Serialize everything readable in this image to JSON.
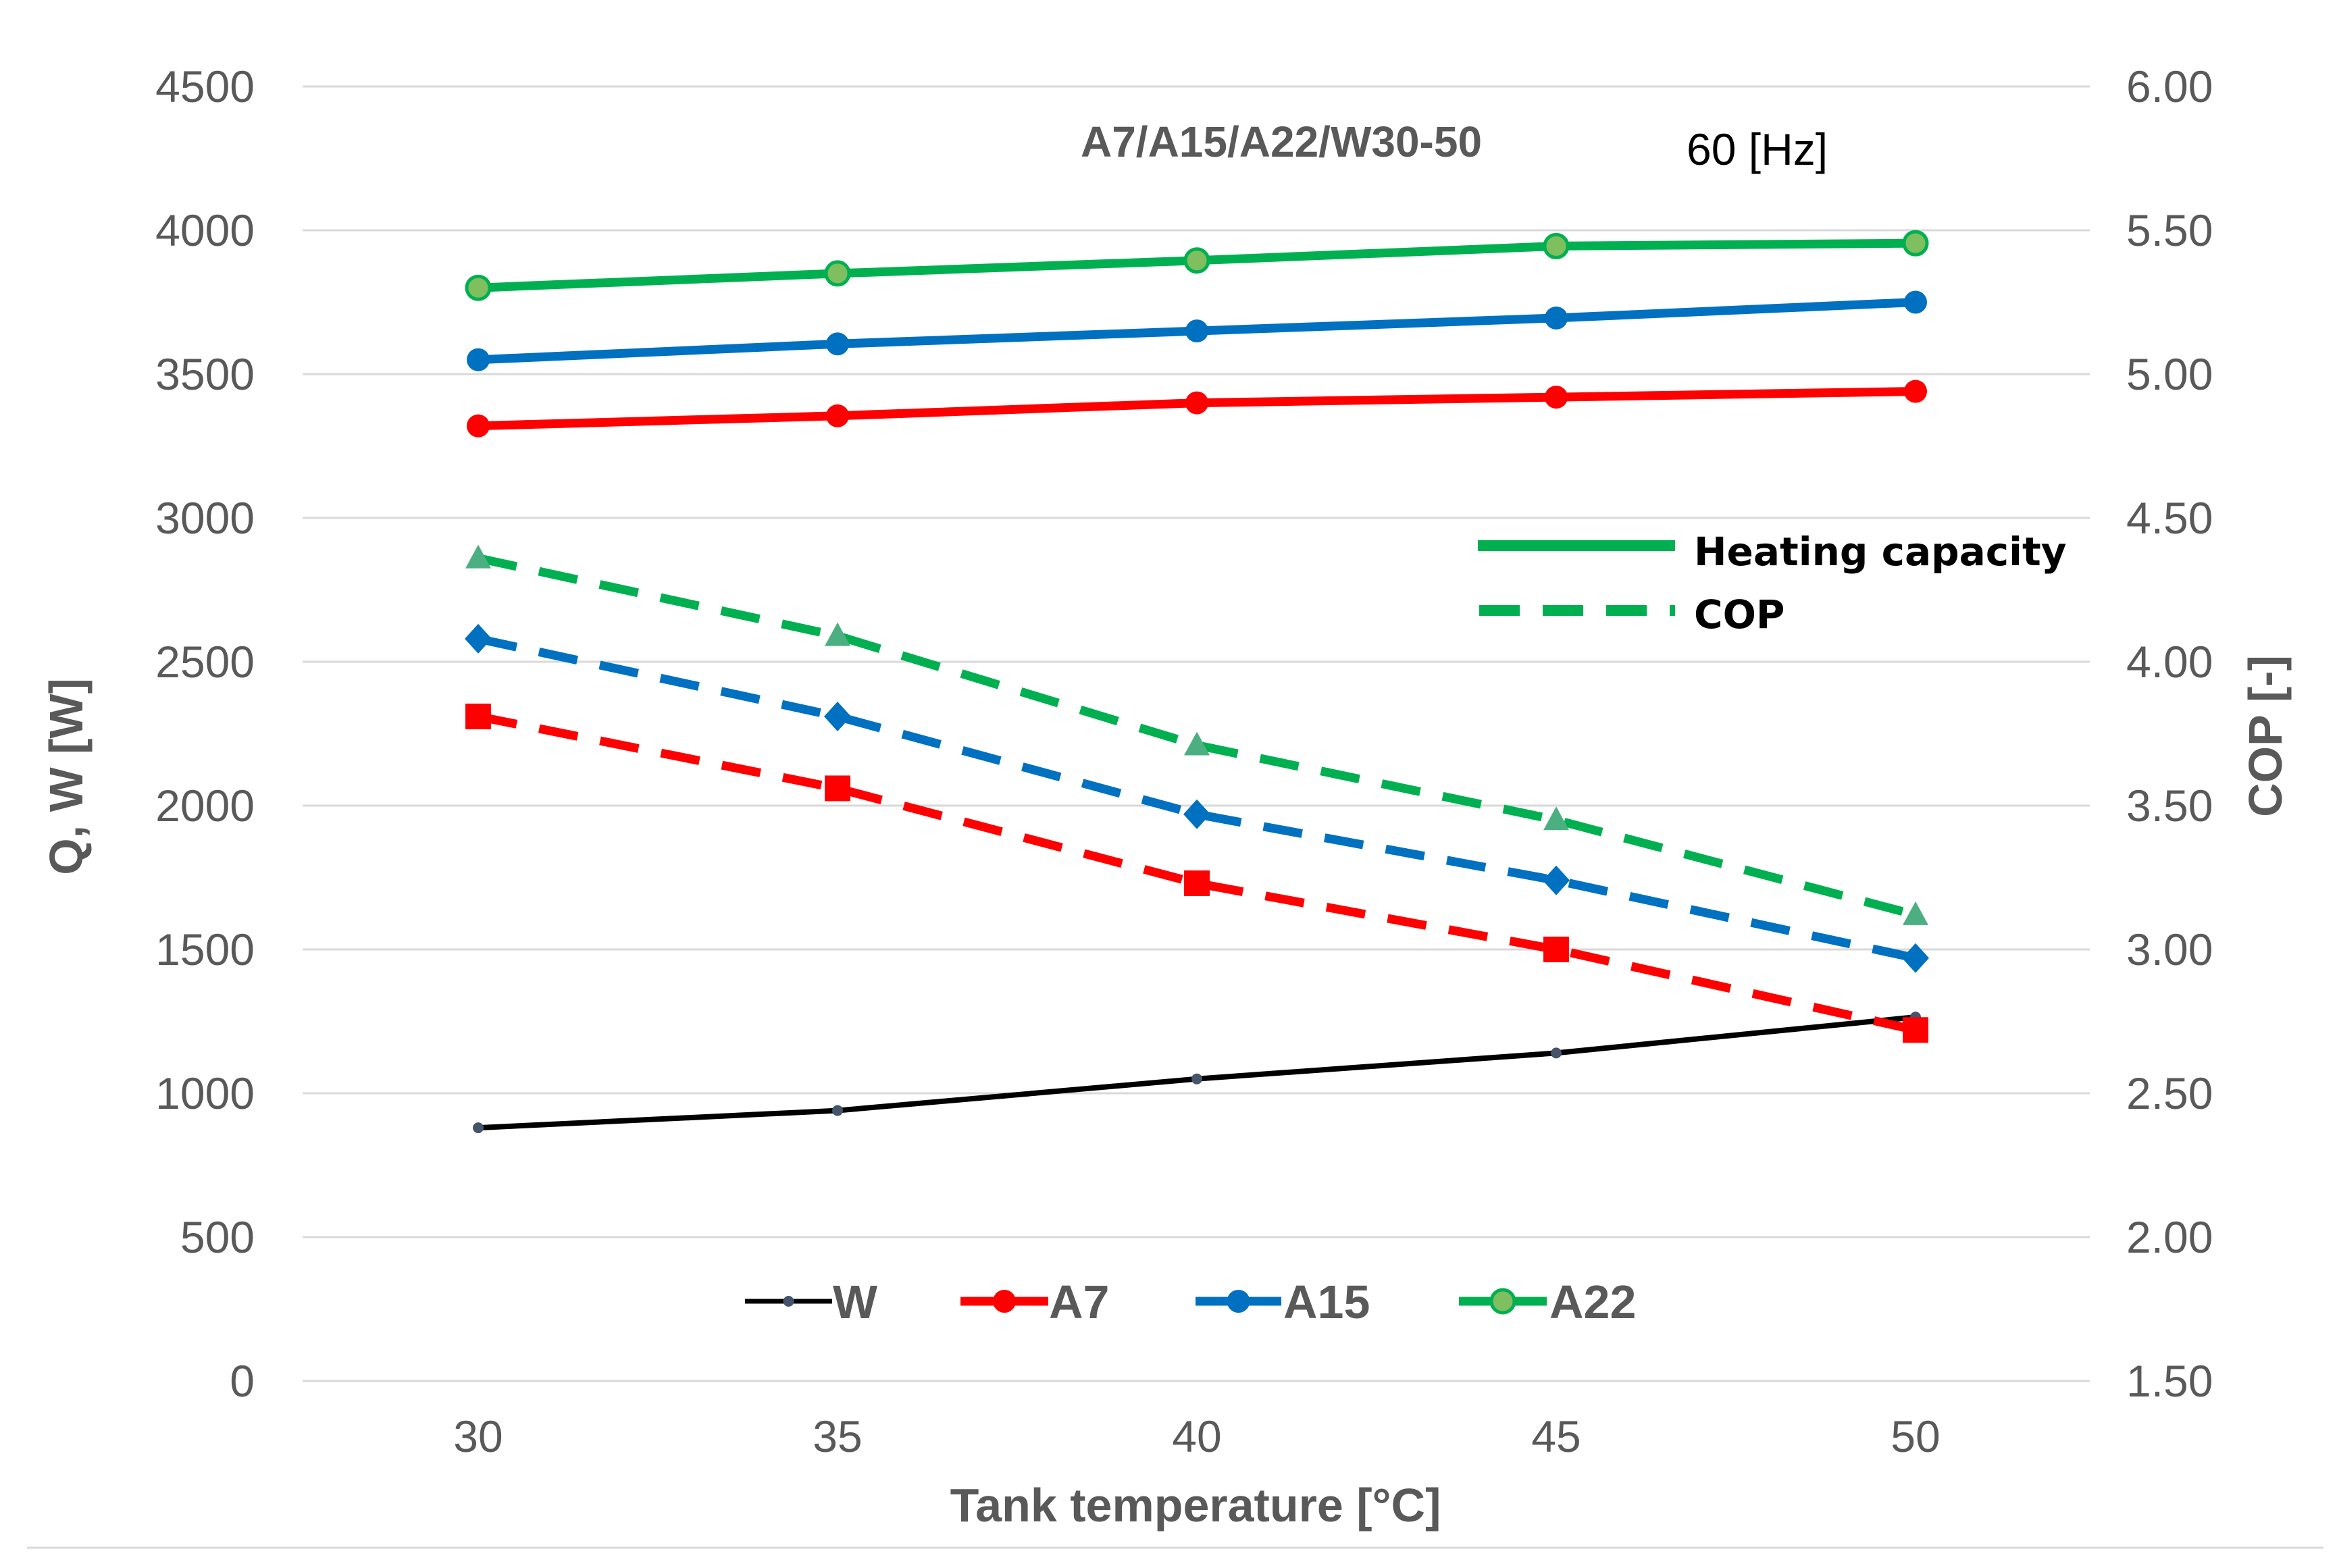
{
  "chart_data": {
    "type": "line",
    "x_values": [
      "30",
      "35",
      "40",
      "45",
      "50"
    ],
    "xlabel": "Tank temperature  [°C]",
    "ylabel_left": "Q, W  [W]",
    "ylabel_right": "COP  [-]",
    "ylim_left": [
      0,
      4500
    ],
    "yticks_left": [
      "0",
      "500",
      "1000",
      "1500",
      "2000",
      "2500",
      "3000",
      "3500",
      "4000",
      "4500"
    ],
    "ylim_right": [
      1.5,
      6.0
    ],
    "yticks_right": [
      "1.50",
      "2.00",
      "2.50",
      "3.00",
      "3.50",
      "4.00",
      "4.50",
      "5.00",
      "5.50",
      "6.00"
    ],
    "grid": true,
    "annotations": {
      "conditions": "A7/A15/A22/W30-50",
      "frequency": "60 [Hz]"
    },
    "style_legend": {
      "solid_label": "Heating capacity",
      "dashed_label": "COP",
      "color": "#00B050"
    },
    "legend_bottom": [
      "W",
      "A7",
      "A15",
      "A22"
    ],
    "series": [
      {
        "name": "W",
        "kind": "power",
        "axis": "left",
        "color": "#000000",
        "values": [
          880,
          940,
          1050,
          1140,
          1265
        ]
      },
      {
        "name": "A7",
        "kind": "capacity",
        "axis": "left",
        "color": "#FF0000",
        "values": [
          3320,
          3355,
          3400,
          3420,
          3440
        ]
      },
      {
        "name": "A15",
        "kind": "capacity",
        "axis": "left",
        "color": "#0070C0",
        "values": [
          3550,
          3605,
          3650,
          3695,
          3750
        ]
      },
      {
        "name": "A22",
        "kind": "capacity",
        "axis": "left",
        "color": "#00B050",
        "values": [
          3800,
          3850,
          3895,
          3945,
          3955
        ]
      },
      {
        "name": "A7",
        "kind": "cop",
        "axis": "right",
        "color": "#FF0000",
        "values": [
          3.81,
          3.56,
          3.23,
          3.0,
          2.72
        ]
      },
      {
        "name": "A15",
        "kind": "cop",
        "axis": "right",
        "color": "#0070C0",
        "values": [
          4.08,
          3.81,
          3.47,
          3.24,
          2.97
        ]
      },
      {
        "name": "A22",
        "kind": "cop",
        "axis": "right",
        "color": "#00B050",
        "values": [
          4.36,
          4.09,
          3.71,
          3.45,
          3.12
        ]
      }
    ]
  }
}
